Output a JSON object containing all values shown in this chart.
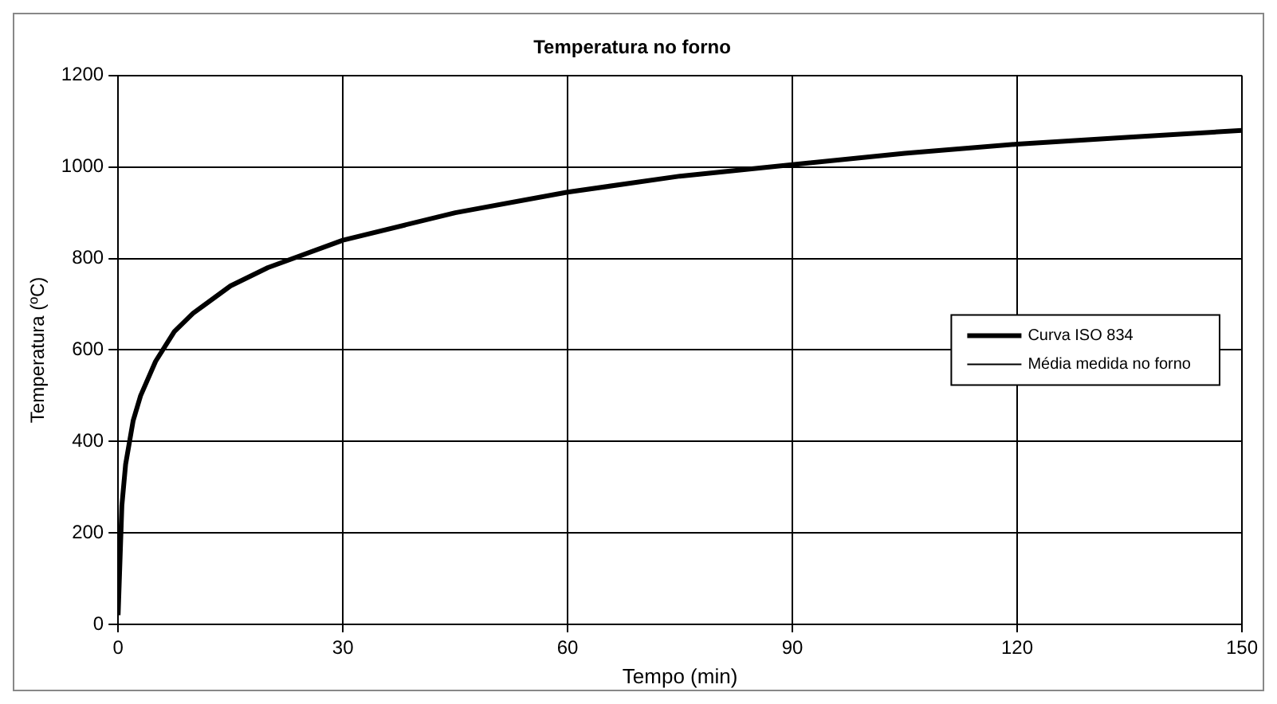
{
  "chart_data": {
    "type": "line",
    "title": "Temperatura no forno",
    "xlabel": "Tempo (min)",
    "ylabel": "Temperatura (ºC)",
    "x": [
      0,
      0.5,
      1,
      2,
      3,
      5,
      7.5,
      10,
      15,
      20,
      30,
      45,
      60,
      75,
      90,
      105,
      120,
      135,
      150
    ],
    "series": [
      {
        "name": "Curva ISO 834",
        "color": "#000000",
        "values": [
          20,
          260,
          350,
          445,
          500,
          575,
          640,
          680,
          740,
          780,
          840,
          900,
          945,
          980,
          1005,
          1030,
          1050,
          1065,
          1080
        ]
      },
      {
        "name": "Média medida no forno",
        "color": "#000000",
        "values": [
          null,
          null,
          null,
          null,
          null,
          null,
          null,
          null,
          null,
          null,
          null,
          null,
          null,
          null,
          null,
          null,
          null,
          null,
          null
        ]
      }
    ],
    "xlim": [
      0,
      150
    ],
    "xticks": [
      0,
      30,
      60,
      90,
      120,
      150
    ],
    "ylim": [
      0,
      1200
    ],
    "yticks": [
      0,
      200,
      400,
      600,
      800,
      1000,
      1200
    ],
    "grid": true,
    "legend": "right",
    "marker": "none",
    "line_style": "solid"
  }
}
